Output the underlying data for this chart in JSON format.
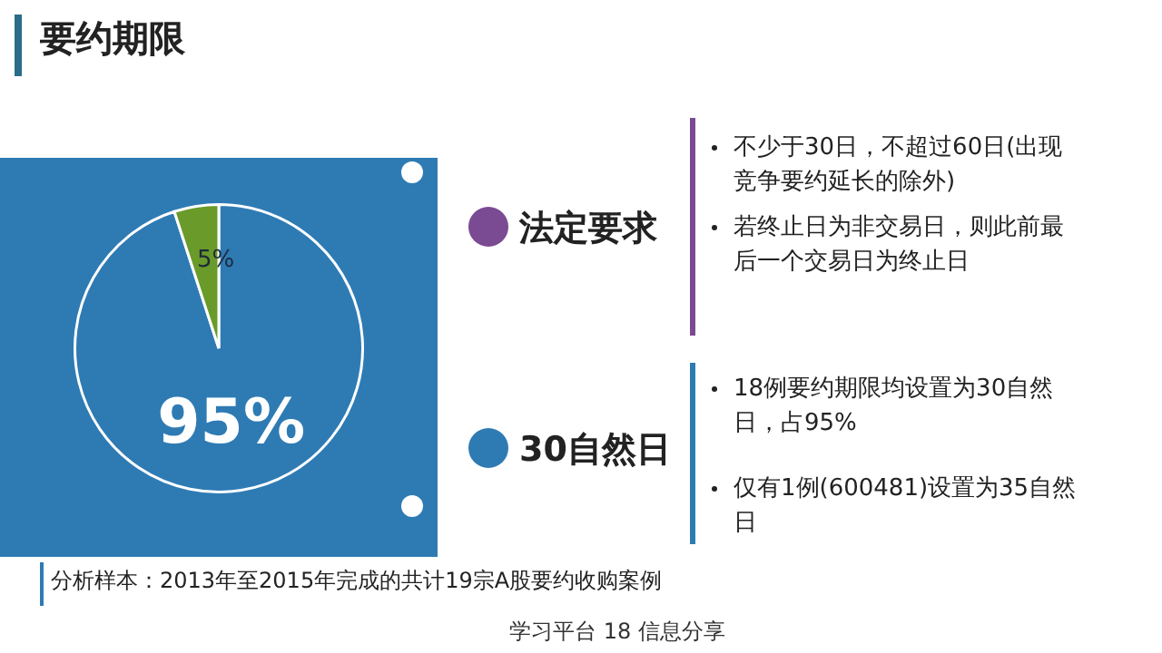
{
  "chart_data": {
    "type": "pie",
    "title": "要约期限",
    "categories": [
      null,
      null
    ],
    "values": [
      95,
      5
    ],
    "colors": [
      "#2e7bb4",
      "#6a9a2a"
    ],
    "value_labels": [
      "95%",
      "5%"
    ],
    "legend": false,
    "annotations": [
      "法定要求",
      "不少于30日，不超过60日(出现竞争要约延长的除外)",
      "若终止日为非交易日，则此前最后一个交易日为终止日",
      "30自然日",
      "18例要约期限均设置为30自然日，占95%",
      "仅有1例(600481)设置为35自然日",
      "分析样本：2013年至2015年完成的共计19宗A股要约收购案例",
      "学习平台 18 信息分享"
    ]
  }
}
